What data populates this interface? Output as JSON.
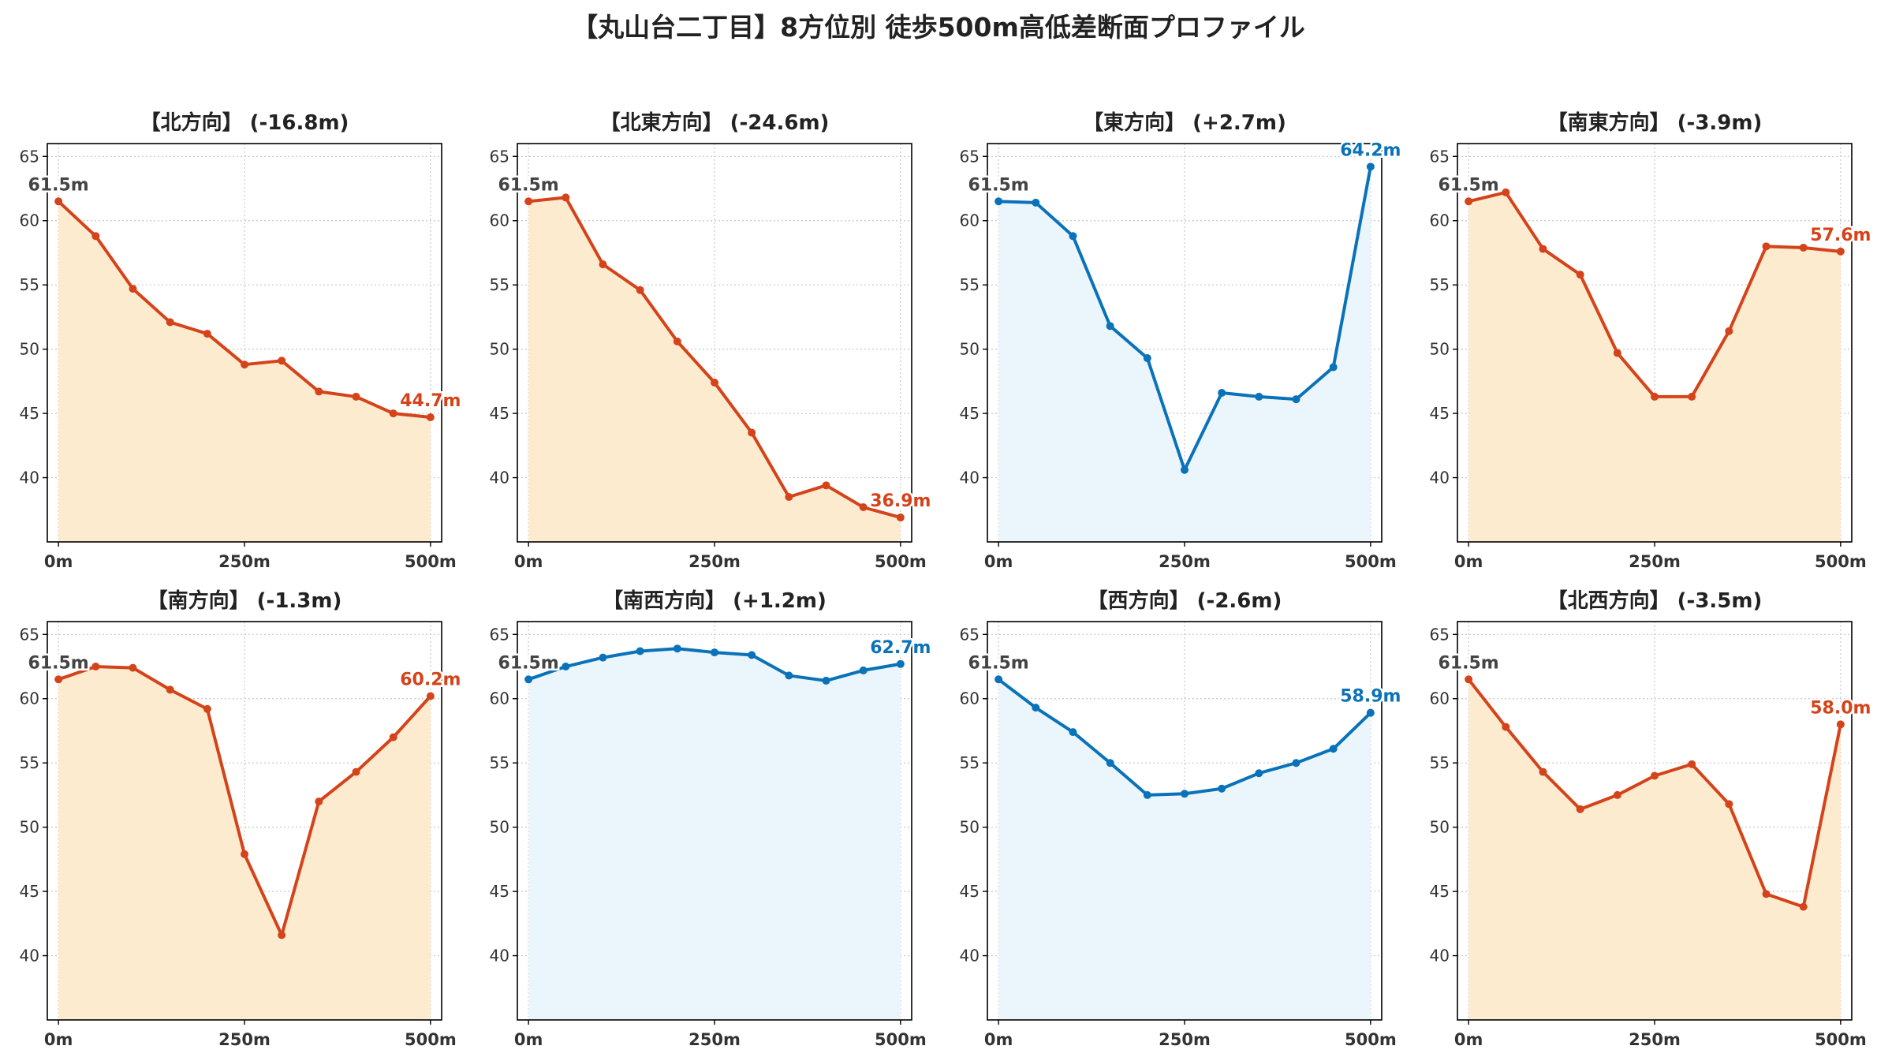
{
  "title": "【丸山台二丁目】8方位別 徒歩500m高低差断面プロファイル",
  "colors": {
    "down_line": "#d4431a",
    "down_fill": "#fdebd0",
    "up_line": "#0a72b8",
    "up_fill": "#eaf6fc",
    "start_label": "#444444",
    "axis": "#000000",
    "grid": "#c8c8c8",
    "tick_label": "#333333"
  },
  "chart_data": [
    {
      "type": "area",
      "title": "【北方向】 (-16.8m)",
      "trend": "down",
      "x": [
        0,
        50,
        100,
        150,
        200,
        250,
        300,
        350,
        400,
        450,
        500
      ],
      "values": [
        61.5,
        58.8,
        54.7,
        52.1,
        51.2,
        48.8,
        49.1,
        46.7,
        46.3,
        45.0,
        44.7
      ],
      "xticks": [
        0,
        250,
        500
      ],
      "xtick_labels": [
        "0m",
        "250m",
        "500m"
      ],
      "yticks": [
        40,
        45,
        50,
        55,
        60,
        65
      ],
      "xlim": [
        -15,
        515
      ],
      "ylim": [
        35,
        66
      ],
      "start_label": "61.5m",
      "end_label": "44.7m",
      "grid": true
    },
    {
      "type": "area",
      "title": "【北東方向】 (-24.6m)",
      "trend": "down",
      "x": [
        0,
        50,
        100,
        150,
        200,
        250,
        300,
        350,
        400,
        450,
        500
      ],
      "values": [
        61.5,
        61.8,
        56.6,
        54.6,
        50.6,
        47.4,
        43.5,
        38.5,
        39.4,
        37.7,
        36.9
      ],
      "xticks": [
        0,
        250,
        500
      ],
      "xtick_labels": [
        "0m",
        "250m",
        "500m"
      ],
      "yticks": [
        40,
        45,
        50,
        55,
        60,
        65
      ],
      "xlim": [
        -15,
        515
      ],
      "ylim": [
        35,
        66
      ],
      "start_label": "61.5m",
      "end_label": "36.9m",
      "grid": true
    },
    {
      "type": "area",
      "title": "【東方向】 (+2.7m)",
      "trend": "up",
      "x": [
        0,
        50,
        100,
        150,
        200,
        250,
        300,
        350,
        400,
        450,
        500
      ],
      "values": [
        61.5,
        61.4,
        58.8,
        51.8,
        49.3,
        40.6,
        46.6,
        46.3,
        46.1,
        48.6,
        64.2
      ],
      "xticks": [
        0,
        250,
        500
      ],
      "xtick_labels": [
        "0m",
        "250m",
        "500m"
      ],
      "yticks": [
        40,
        45,
        50,
        55,
        60,
        65
      ],
      "xlim": [
        -15,
        515
      ],
      "ylim": [
        35,
        66
      ],
      "start_label": "61.5m",
      "end_label": "64.2m",
      "grid": true
    },
    {
      "type": "area",
      "title": "【南東方向】 (-3.9m)",
      "trend": "down",
      "x": [
        0,
        50,
        100,
        150,
        200,
        250,
        300,
        350,
        400,
        450,
        500
      ],
      "values": [
        61.5,
        62.2,
        57.8,
        55.8,
        49.7,
        46.3,
        46.3,
        51.4,
        58.0,
        57.9,
        57.6
      ],
      "xticks": [
        0,
        250,
        500
      ],
      "xtick_labels": [
        "0m",
        "250m",
        "500m"
      ],
      "yticks": [
        40,
        45,
        50,
        55,
        60,
        65
      ],
      "xlim": [
        -15,
        515
      ],
      "ylim": [
        35,
        66
      ],
      "start_label": "61.5m",
      "end_label": "57.6m",
      "grid": true
    },
    {
      "type": "area",
      "title": "【南方向】 (-1.3m)",
      "trend": "down",
      "x": [
        0,
        50,
        100,
        150,
        200,
        250,
        300,
        350,
        400,
        450,
        500
      ],
      "values": [
        61.5,
        62.5,
        62.4,
        60.7,
        59.2,
        47.9,
        41.6,
        52.0,
        54.3,
        57.0,
        60.2
      ],
      "xticks": [
        0,
        250,
        500
      ],
      "xtick_labels": [
        "0m",
        "250m",
        "500m"
      ],
      "yticks": [
        40,
        45,
        50,
        55,
        60,
        65
      ],
      "xlim": [
        -15,
        515
      ],
      "ylim": [
        35,
        66
      ],
      "start_label": "61.5m",
      "end_label": "60.2m",
      "grid": true
    },
    {
      "type": "area",
      "title": "【南西方向】 (+1.2m)",
      "trend": "up",
      "x": [
        0,
        50,
        100,
        150,
        200,
        250,
        300,
        350,
        400,
        450,
        500
      ],
      "values": [
        61.5,
        62.5,
        63.2,
        63.7,
        63.9,
        63.6,
        63.4,
        61.8,
        61.4,
        62.2,
        62.7
      ],
      "xticks": [
        0,
        250,
        500
      ],
      "xtick_labels": [
        "0m",
        "250m",
        "500m"
      ],
      "yticks": [
        40,
        45,
        50,
        55,
        60,
        65
      ],
      "xlim": [
        -15,
        515
      ],
      "ylim": [
        35,
        66
      ],
      "start_label": "61.5m",
      "end_label": "62.7m",
      "grid": true
    },
    {
      "type": "area",
      "title": "【西方向】 (-2.6m)",
      "trend": "up",
      "x": [
        0,
        50,
        100,
        150,
        200,
        250,
        300,
        350,
        400,
        450,
        500
      ],
      "values": [
        61.5,
        59.3,
        57.4,
        55.0,
        52.5,
        52.6,
        53.0,
        54.2,
        55.0,
        56.1,
        58.9
      ],
      "xticks": [
        0,
        250,
        500
      ],
      "xtick_labels": [
        "0m",
        "250m",
        "500m"
      ],
      "yticks": [
        40,
        45,
        50,
        55,
        60,
        65
      ],
      "xlim": [
        -15,
        515
      ],
      "ylim": [
        35,
        66
      ],
      "start_label": "61.5m",
      "end_label": "58.9m",
      "grid": true
    },
    {
      "type": "area",
      "title": "【北西方向】 (-3.5m)",
      "trend": "down",
      "x": [
        0,
        50,
        100,
        150,
        200,
        250,
        300,
        350,
        400,
        450,
        500
      ],
      "values": [
        61.5,
        57.8,
        54.3,
        51.4,
        52.5,
        54.0,
        54.9,
        51.8,
        44.8,
        43.8,
        58.0
      ],
      "xticks": [
        0,
        250,
        500
      ],
      "xtick_labels": [
        "0m",
        "250m",
        "500m"
      ],
      "yticks": [
        40,
        45,
        50,
        55,
        60,
        65
      ],
      "xlim": [
        -15,
        515
      ],
      "ylim": [
        35,
        66
      ],
      "start_label": "61.5m",
      "end_label": "58.0m",
      "grid": true
    }
  ]
}
